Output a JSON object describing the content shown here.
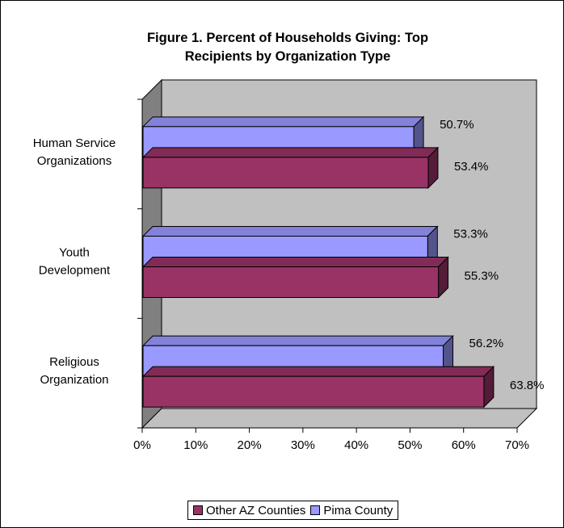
{
  "chart_data": {
    "type": "bar",
    "orientation": "horizontal",
    "title": [
      "Figure 1. Percent of Households Giving: Top",
      "Recipients by Organization Type"
    ],
    "categories": [
      [
        "Human Service",
        "Organizations"
      ],
      [
        "Youth",
        "Development"
      ],
      [
        "Religious",
        "Organization"
      ]
    ],
    "series": [
      {
        "name": "Pima County",
        "values": [
          50.7,
          53.3,
          56.2
        ],
        "labels": [
          "50.7%",
          "53.3%",
          "56.2%"
        ],
        "color": "#9999FF"
      },
      {
        "name": "Other AZ Counties",
        "values": [
          53.4,
          55.3,
          63.8
        ],
        "labels": [
          "53.4%",
          "55.3%",
          "63.8%"
        ],
        "color": "#993366"
      }
    ],
    "xlim": [
      0,
      70
    ],
    "x_ticks": [
      "0%",
      "10%",
      "20%",
      "30%",
      "40%",
      "50%",
      "60%",
      "70%"
    ],
    "legend_position": "bottom",
    "style": "3d-clustered"
  },
  "legend": {
    "items": [
      {
        "label": "Other AZ Counties",
        "color": "#993366"
      },
      {
        "label": "Pima County",
        "color": "#9999FF"
      }
    ]
  }
}
